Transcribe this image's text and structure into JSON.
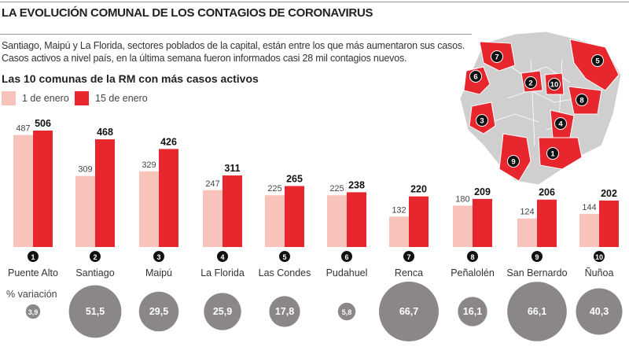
{
  "title": "LA EVOLUCIÓN COMUNAL DE LOS CONTAGIOS DE CORONAVIRUS",
  "intro": "Santiago, Maipú y La Florida, sectores poblados de la capital, están entre los que más aumentaron sus casos. Casos activos a nivel país, en la última semana fueron informados casi 28 mil contagios nuevos.",
  "colors": {
    "jan1": "#f8c3bb",
    "jan15": "#e8262e",
    "bubble": "#8a8786",
    "map_gray": "#cfcfcf",
    "map_red": "#e8262e"
  },
  "map": {
    "labels": [
      "1",
      "2",
      "3",
      "4",
      "5",
      "6",
      "7",
      "8",
      "9",
      "10"
    ]
  },
  "chart_data": {
    "type": "bar",
    "title": "Las 10 comunas de la RM con más casos activos",
    "legend": [
      "1 de enero",
      "15 de enero"
    ],
    "legend_placement": "top-left",
    "grid": false,
    "ranks": [
      "1",
      "2",
      "3",
      "4",
      "5",
      "6",
      "7",
      "8",
      "9",
      "10"
    ],
    "categories": [
      "Puente Alto",
      "Santiago",
      "Maipú",
      "La Florida",
      "Las Condes",
      "Pudahuel",
      "Renca",
      "Peñalolén",
      "San Bernardo",
      "Ñuñoa"
    ],
    "series": [
      {
        "name": "1 de enero",
        "values": [
          487,
          309,
          329,
          247,
          225,
          225,
          132,
          180,
          124,
          144
        ]
      },
      {
        "name": "15 de enero",
        "values": [
          506,
          468,
          426,
          311,
          265,
          238,
          220,
          209,
          206,
          202
        ]
      }
    ],
    "variation_label": "% variación",
    "variation": [
      "3,9",
      "51,5",
      "29,5",
      "25,9",
      "17,8",
      "5,8",
      "66,7",
      "16,1",
      "66,1",
      "40,3"
    ],
    "variation_values": [
      3.9,
      51.5,
      29.5,
      25.9,
      17.8,
      5.8,
      66.7,
      16.1,
      66.1,
      40.3
    ]
  }
}
